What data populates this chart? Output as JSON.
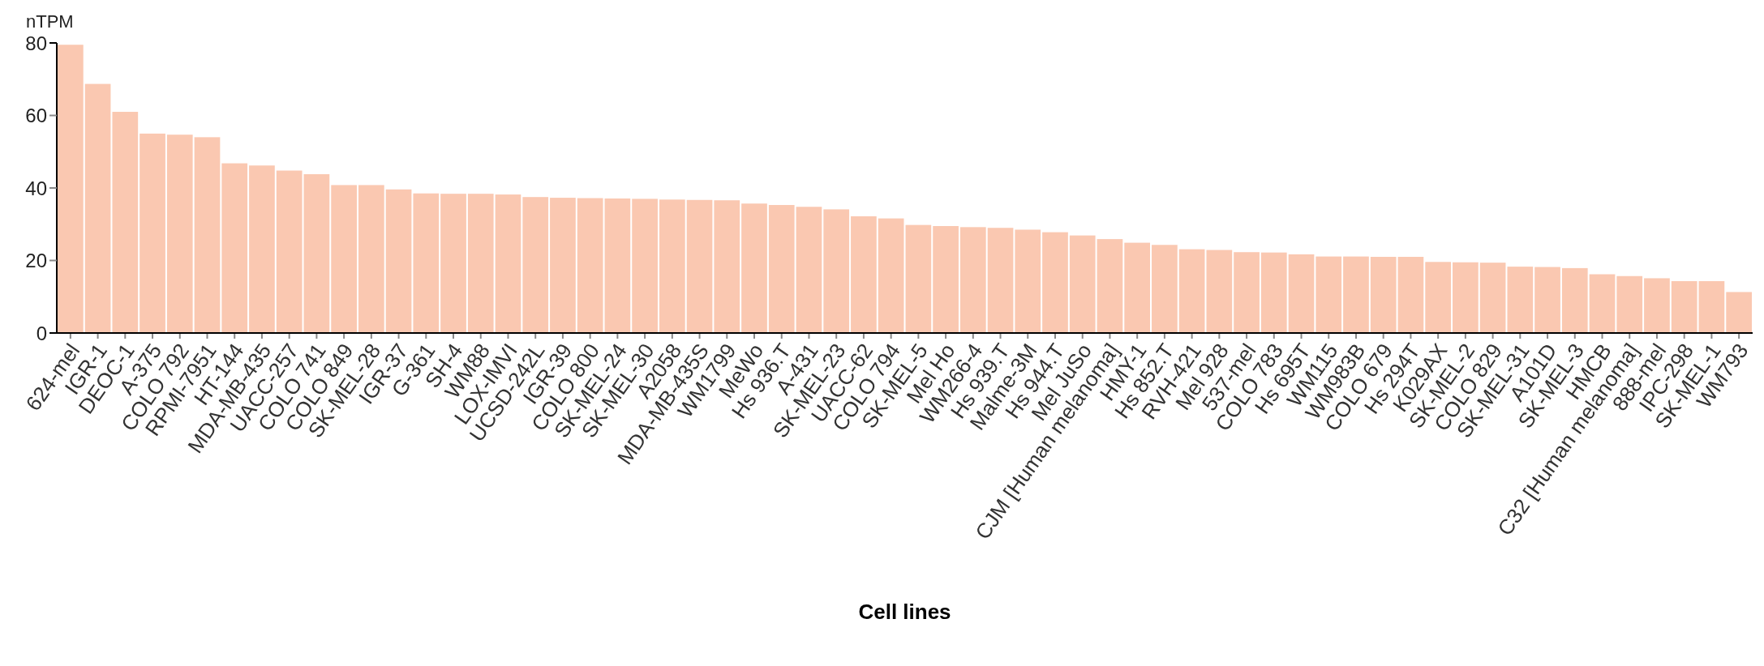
{
  "chart_data": {
    "type": "bar",
    "ylabel": "nTPM",
    "xlabel": "Cell lines",
    "color": "#fac8b1",
    "categories": [
      "624-mel",
      "IGR-1",
      "DEOC-1",
      "A-375",
      "COLO 792",
      "RPMI-7951",
      "HT-144",
      "MDA-MB-435",
      "UACC-257",
      "COLO 741",
      "COLO 849",
      "SK-MEL-28",
      "IGR-37",
      "G-361",
      "SH-4",
      "WM88",
      "LOX-IMVI",
      "UCSD-242L",
      "IGR-39",
      "COLO 800",
      "SK-MEL-24",
      "SK-MEL-30",
      "A2058",
      "MDA-MB-435S",
      "WM1799",
      "MeWo",
      "Hs 936.T",
      "A-431",
      "SK-MEL-23",
      "UACC-62",
      "COLO 794",
      "SK-MEL-5",
      "Mel Ho",
      "WM266-4",
      "Hs 939.T",
      "Malme-3M",
      "Hs 944.T",
      "Mel JuSo",
      "CJM [Human melanoma]",
      "HMY-1",
      "Hs 852.T",
      "RVH-421",
      "Mel 928",
      "537-mel",
      "COLO 783",
      "Hs 695T",
      "WM115",
      "WM983B",
      "COLO 679",
      "Hs 294T",
      "K029AX",
      "SK-MEL-2",
      "COLO 829",
      "SK-MEL-31",
      "A101D",
      "SK-MEL-3",
      "HMCB",
      "C32 [Human melanoma]",
      "888-mel",
      "IPC-298",
      "SK-MEL-1",
      "WM793"
    ],
    "values": [
      79.5,
      68.7,
      61,
      55,
      54.7,
      54,
      46.8,
      46.2,
      44.8,
      43.8,
      40.8,
      40.8,
      39.6,
      38.5,
      38.4,
      38.4,
      38.2,
      37.5,
      37.3,
      37.2,
      37.1,
      37,
      36.8,
      36.7,
      36.6,
      35.7,
      35.3,
      34.8,
      34.1,
      32.2,
      31.6,
      29.8,
      29.5,
      29.2,
      29,
      28.5,
      27.8,
      26.9,
      25.9,
      24.9,
      24.3,
      23.1,
      22.9,
      22.3,
      22.2,
      21.7,
      21.1,
      21.1,
      21,
      21,
      19.6,
      19.5,
      19.4,
      18.3,
      18.2,
      17.9,
      16.2,
      15.7,
      15.1,
      14.3,
      14.3,
      11.3
    ],
    "ylim": [
      0,
      80
    ],
    "yticks": [
      0,
      20,
      40,
      60,
      80
    ]
  }
}
